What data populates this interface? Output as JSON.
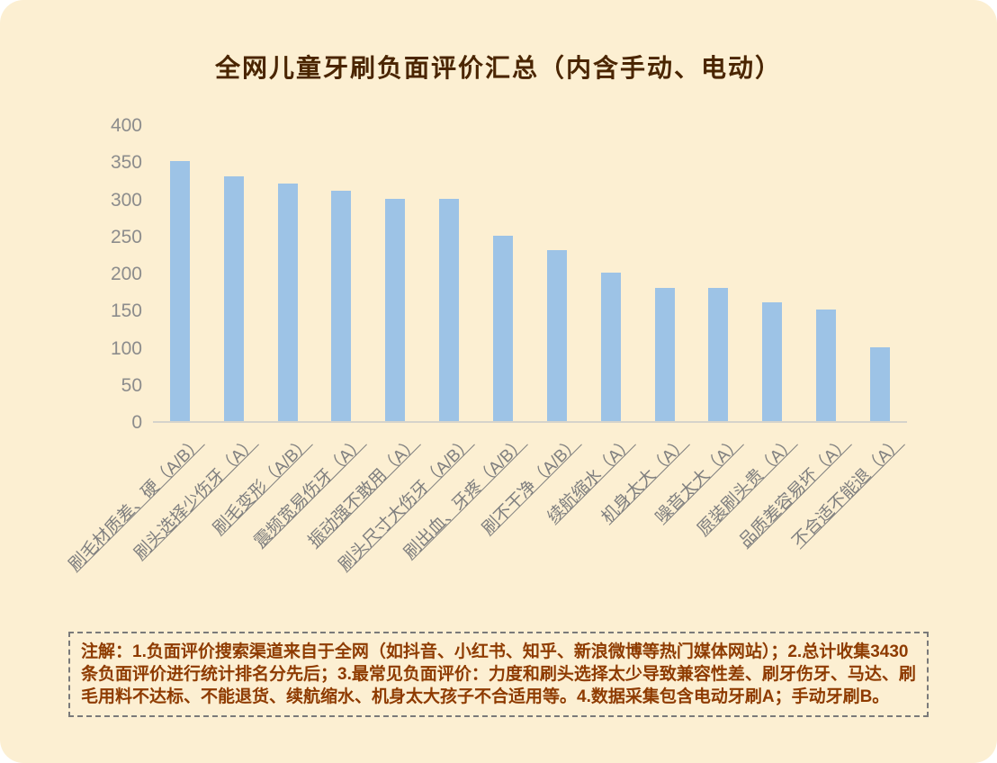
{
  "page": {
    "bg_color": "#FCEFD2"
  },
  "chart_data": {
    "type": "bar",
    "title": "全网儿童牙刷负面评价汇总（内含手动、电动）",
    "categories": [
      "刷毛材质差、硬（A/B）",
      "刷头选择少伤牙（A）",
      "刷毛变形（A/B）",
      "震频宽易伤牙（A）",
      "振动强不敢用（A）",
      "刷头尺寸大伤牙（A/B）",
      "刷出血、牙疼（A/B）",
      "刷不干净（A/B）",
      "续航缩水（A）",
      "机身太大（A）",
      "噪音太大（A）",
      "原装刷头贵（A）",
      "品质差容易坏（A）",
      "不合适不能退（A）"
    ],
    "values": [
      350,
      330,
      320,
      310,
      300,
      300,
      250,
      230,
      200,
      180,
      180,
      160,
      150,
      100
    ],
    "xlabel": "",
    "ylabel": "",
    "ylim": [
      0,
      400
    ],
    "yticks": [
      400,
      350,
      300,
      250,
      200,
      150,
      100,
      50,
      0
    ],
    "bar_color": "#9DC3E6",
    "grid": false,
    "legend": "none",
    "tick_color": "#8c8c8c",
    "category_label_color": "#7f7f7f"
  },
  "note": {
    "text": "注解：1.负面评价搜索渠道来自于全网（如抖音、小红书、知乎、新浪微博等热门媒体网站）；2.总计收集3430条负面评价进行统计排名分先后；3.最常见负面评价：力度和刷头选择太少导致兼容性差、刷牙伤牙、马达、刷毛用料不达标、不能退货、续航缩水、机身太大孩子不合适用等。4.数据采集包含电动牙刷A；手动牙刷B。"
  }
}
